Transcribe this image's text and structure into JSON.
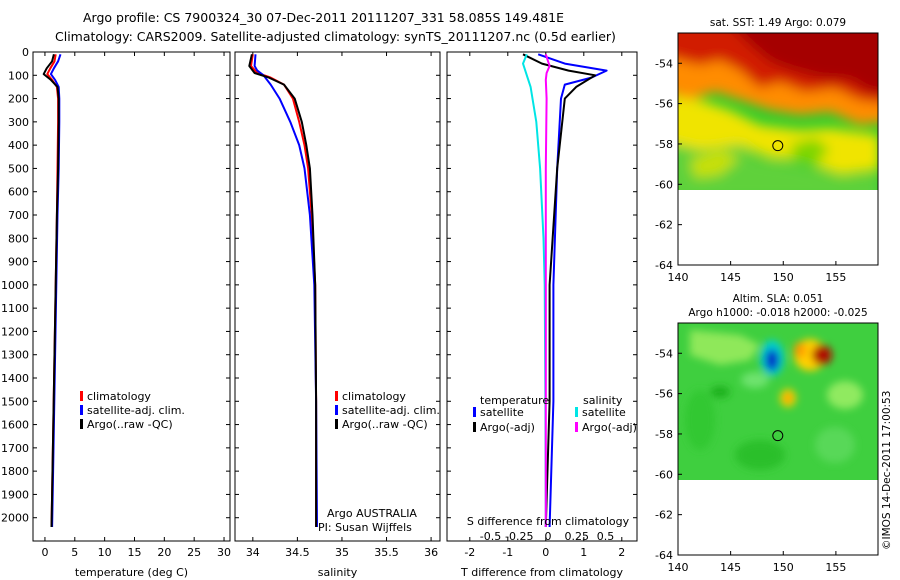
{
  "header": {
    "line1": "Argo profile: CS 7900324_30 07-Dec-2011 20111207_331 58.085S 149.481E",
    "line2": "Climatology: CARS2009. Satellite-adjusted climatology: synTS_20111207.nc (0.5d earlier)"
  },
  "footer": {
    "credit": "©IMOS 14-Dec-2011 17:00:53",
    "argo_note": "Argo AUSTRALIA",
    "pi_note": "PI: Susan Wijffels"
  },
  "colors": {
    "climatology": "#ff0000",
    "satellite": "#0000ff",
    "argo": "#000000",
    "sal_satellite": "#00e5e5",
    "sal_argo": "#ff00ff"
  },
  "chart_data": [
    {
      "type": "line",
      "panel": "temperature",
      "xlabel": "temperature (deg C)",
      "ylabel": "",
      "xlim": [
        -2,
        31
      ],
      "ylim": [
        2100,
        0
      ],
      "xticks": [
        0,
        5,
        10,
        15,
        20,
        25,
        30
      ],
      "yticks": [
        0,
        100,
        200,
        300,
        400,
        500,
        600,
        700,
        800,
        900,
        1000,
        1100,
        1200,
        1300,
        1400,
        1500,
        1600,
        1700,
        1800,
        1900,
        2000
      ],
      "legend": [
        "climatology",
        "satellite-adj. clim.",
        "Argo(..raw -QC)"
      ],
      "series": [
        {
          "name": "climatology",
          "color": "#ff0000",
          "points": [
            [
              1.8,
              10
            ],
            [
              1.6,
              40
            ],
            [
              0.9,
              70
            ],
            [
              0.4,
              95
            ],
            [
              1.2,
              120
            ],
            [
              2.0,
              150
            ],
            [
              2.2,
              200
            ],
            [
              2.2,
              300
            ],
            [
              2.1,
              500
            ],
            [
              2.0,
              700
            ],
            [
              1.8,
              1000
            ],
            [
              1.6,
              1300
            ],
            [
              1.4,
              1600
            ],
            [
              1.2,
              1900
            ],
            [
              1.1,
              2040
            ]
          ]
        },
        {
          "name": "satellite-adj. clim.",
          "color": "#0000ff",
          "points": [
            [
              2.6,
              10
            ],
            [
              2.2,
              40
            ],
            [
              1.5,
              70
            ],
            [
              1.0,
              95
            ],
            [
              1.7,
              120
            ],
            [
              2.3,
              150
            ],
            [
              2.4,
              200
            ],
            [
              2.4,
              300
            ],
            [
              2.3,
              500
            ],
            [
              2.1,
              700
            ],
            [
              1.9,
              1000
            ],
            [
              1.7,
              1300
            ],
            [
              1.5,
              1600
            ],
            [
              1.3,
              1900
            ],
            [
              1.2,
              2040
            ]
          ]
        },
        {
          "name": "Argo(..raw -QC)",
          "color": "#000000",
          "points": [
            [
              1.5,
              10
            ],
            [
              1.2,
              40
            ],
            [
              0.3,
              70
            ],
            [
              -0.2,
              95
            ],
            [
              1.0,
              120
            ],
            [
              2.1,
              150
            ],
            [
              2.3,
              200
            ],
            [
              2.3,
              300
            ],
            [
              2.2,
              500
            ],
            [
              2.0,
              700
            ],
            [
              1.8,
              1000
            ],
            [
              1.6,
              1300
            ],
            [
              1.4,
              1600
            ],
            [
              1.2,
              1900
            ],
            [
              1.1,
              2040
            ]
          ]
        }
      ]
    },
    {
      "type": "line",
      "panel": "salinity",
      "xlabel": "salinity",
      "ylabel": "",
      "xlim": [
        33.8,
        36.1
      ],
      "ylim": [
        2100,
        0
      ],
      "xticks": [
        34,
        34.5,
        35,
        35.5,
        36
      ],
      "xticklabels": [
        "34",
        "34.5",
        "35",
        "35.5",
        "36"
      ],
      "legend": [
        "climatology",
        "satellite-adj. clim.",
        "Argo(..raw -QC)"
      ],
      "series": [
        {
          "name": "climatology",
          "color": "#ff0000",
          "points": [
            [
              34.0,
              10
            ],
            [
              33.98,
              60
            ],
            [
              34.05,
              90
            ],
            [
              34.2,
              110
            ],
            [
              34.35,
              140
            ],
            [
              34.45,
              200
            ],
            [
              34.52,
              300
            ],
            [
              34.58,
              400
            ],
            [
              34.62,
              500
            ],
            [
              34.66,
              700
            ],
            [
              34.7,
              1000
            ],
            [
              34.71,
              1500
            ],
            [
              34.71,
              2040
            ]
          ]
        },
        {
          "name": "satellite-adj. clim.",
          "color": "#0000ff",
          "points": [
            [
              34.03,
              10
            ],
            [
              34.02,
              60
            ],
            [
              34.05,
              80
            ],
            [
              34.12,
              100
            ],
            [
              34.2,
              140
            ],
            [
              34.3,
              200
            ],
            [
              34.42,
              300
            ],
            [
              34.52,
              400
            ],
            [
              34.58,
              500
            ],
            [
              34.64,
              700
            ],
            [
              34.69,
              1000
            ],
            [
              34.71,
              1500
            ],
            [
              34.72,
              2040
            ]
          ]
        },
        {
          "name": "Argo(..raw -QC)",
          "color": "#000000",
          "points": [
            [
              33.99,
              10
            ],
            [
              33.96,
              60
            ],
            [
              34.02,
              90
            ],
            [
              34.18,
              110
            ],
            [
              34.35,
              140
            ],
            [
              34.47,
              200
            ],
            [
              34.55,
              300
            ],
            [
              34.6,
              400
            ],
            [
              34.64,
              500
            ],
            [
              34.67,
              700
            ],
            [
              34.7,
              1000
            ],
            [
              34.71,
              1500
            ],
            [
              34.71,
              2040
            ]
          ]
        }
      ]
    },
    {
      "type": "line",
      "panel": "difference",
      "xlabel": "T difference from climatology",
      "top_xlabel": "S difference from climatology",
      "xlim": [
        -2.6,
        2.4
      ],
      "ylim": [
        2100,
        0
      ],
      "xticks": [
        -2,
        -1,
        0,
        1,
        2
      ],
      "top_ticks": [
        -0.5,
        -0.25,
        0,
        0.25,
        0.5
      ],
      "top_ticklabels": [
        "-0.5",
        "-0.25",
        "0",
        "0.25",
        "0.5"
      ],
      "legend": {
        "temperature": "temperature",
        "salinity": "salinity",
        "entries": [
          "satellite",
          "Argo(-adj)",
          "satellite",
          "Argo(-adj)"
        ]
      },
      "series": [
        {
          "name": "temperature satellite",
          "color": "#0000ff",
          "points": [
            [
              -0.2,
              10
            ],
            [
              0.5,
              50
            ],
            [
              1.6,
              80
            ],
            [
              1.2,
              110
            ],
            [
              0.5,
              140
            ],
            [
              0.4,
              200
            ],
            [
              0.3,
              500
            ],
            [
              0.2,
              1000
            ],
            [
              0.2,
              1500
            ],
            [
              0.1,
              2040
            ]
          ]
        },
        {
          "name": "temperature Argo(-adj)",
          "color": "#000000",
          "points": [
            [
              -0.6,
              10
            ],
            [
              -0.1,
              50
            ],
            [
              0.6,
              80
            ],
            [
              1.3,
              100
            ],
            [
              0.8,
              150
            ],
            [
              0.5,
              200
            ],
            [
              0.3,
              500
            ],
            [
              0.1,
              1000
            ],
            [
              0.1,
              1500
            ],
            [
              0.0,
              2040
            ]
          ]
        },
        {
          "name": "salinity satellite",
          "color": "#00e5e5",
          "points": [
            [
              -0.5,
              10
            ],
            [
              -0.6,
              50
            ],
            [
              -0.5,
              100
            ],
            [
              -0.4,
              150
            ],
            [
              -0.35,
              200
            ],
            [
              -0.25,
              300
            ],
            [
              -0.15,
              500
            ],
            [
              -0.06,
              800
            ],
            [
              -0.03,
              1000
            ],
            [
              -0.01,
              1500
            ],
            [
              0.0,
              2040
            ]
          ]
        },
        {
          "name": "salinity Argo(-adj)",
          "color": "#ff00ff",
          "points": [
            [
              0.0,
              10
            ],
            [
              0.1,
              60
            ],
            [
              0.02,
              90
            ],
            [
              0.0,
              120
            ],
            [
              0.02,
              200
            ],
            [
              0.0,
              500
            ],
            [
              0.0,
              1000
            ],
            [
              0.0,
              1500
            ],
            [
              0.0,
              2040
            ]
          ]
        }
      ]
    },
    {
      "type": "heatmap",
      "panel": "sst-map",
      "title": "sat. SST: 1.49 Argo: 0.079",
      "xlim": [
        140,
        159
      ],
      "ylim": [
        -64,
        -52.5
      ],
      "xticks": [
        140,
        145,
        150,
        155
      ],
      "yticks": [
        -54,
        -56,
        -58,
        -60,
        -62,
        -64
      ],
      "argo_location": [
        149.48,
        -58.085
      ]
    },
    {
      "type": "heatmap",
      "panel": "sla-map",
      "title": "Altim. SLA: 0.051",
      "subtitle": "Argo h1000: -0.018 h2000: -0.025",
      "xlim": [
        140,
        159
      ],
      "ylim": [
        -64,
        -52.5
      ],
      "xticks": [
        140,
        145,
        150,
        155
      ],
      "yticks": [
        -54,
        -56,
        -58,
        -60,
        -62,
        -64
      ],
      "argo_location": [
        149.48,
        -58.085
      ]
    }
  ]
}
